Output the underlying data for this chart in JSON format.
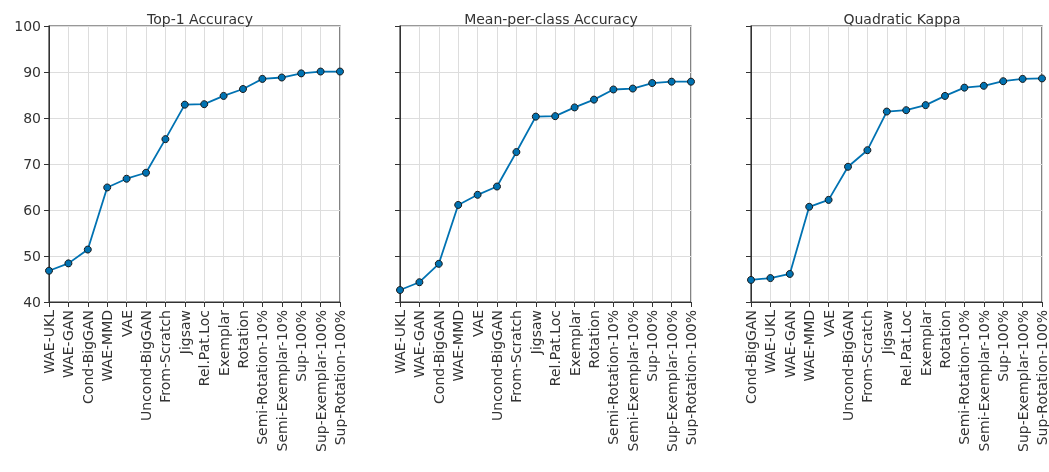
{
  "chart_data": [
    {
      "type": "line",
      "title": "Top-1 Accuracy",
      "categories": [
        "WAE-UKL",
        "WAE-GAN",
        "Cond-BigGAN",
        "WAE-MMD",
        "VAE",
        "Uncond-BigGAN",
        "From-Scratch",
        "Jigsaw",
        "Rel.Pat.Loc",
        "Exemplar",
        "Rotation",
        "Semi-Rotation-10%",
        "Semi-Exemplar-10%",
        "Sup-100%",
        "Sup-Exemplar-100%",
        "Sup-Rotation-100%"
      ],
      "series": [
        {
          "color": "#0072b2",
          "values": [
            46.8,
            48.4,
            51.4,
            64.9,
            66.8,
            68.1,
            75.4,
            82.9,
            83.0,
            84.8,
            86.3,
            88.5,
            88.8,
            89.7,
            90.1,
            90.1
          ]
        }
      ],
      "ylim": [
        40,
        100
      ],
      "yticks": [
        40,
        50,
        60,
        70,
        80,
        90,
        100
      ],
      "grid": true,
      "marker": "circle",
      "line_style": "solid"
    },
    {
      "type": "line",
      "title": "Mean-per-class Accuracy",
      "categories": [
        "WAE-UKL",
        "WAE-GAN",
        "Cond-BigGAN",
        "WAE-MMD",
        "VAE",
        "Uncond-BigGAN",
        "From-Scratch",
        "Jigsaw",
        "Rel.Pat.Loc",
        "Exemplar",
        "Rotation",
        "Semi-Rotation-10%",
        "Semi-Exemplar-10%",
        "Sup-100%",
        "Sup-Exemplar-100%",
        "Sup-Rotation-100%"
      ],
      "series": [
        {
          "color": "#0072b2",
          "values": [
            42.6,
            44.3,
            48.3,
            61.1,
            63.3,
            65.1,
            72.6,
            80.3,
            80.4,
            82.3,
            84.0,
            86.2,
            86.4,
            87.6,
            87.9,
            87.9
          ]
        }
      ],
      "ylim": [
        40,
        100
      ],
      "yticks": [
        40,
        50,
        60,
        70,
        80,
        90,
        100
      ],
      "grid": true,
      "marker": "circle",
      "line_style": "solid",
      "tick_labels": "x"
    },
    {
      "type": "line",
      "title": "Quadratic Kappa",
      "categories": [
        "Cond-BigGAN",
        "WAE-UKL",
        "WAE-GAN",
        "WAE-MMD",
        "VAE",
        "Uncond-BigGAN",
        "From-Scratch",
        "Jigsaw",
        "Rel.Pat.Loc",
        "Exemplar",
        "Rotation",
        "Semi-Rotation-10%",
        "Semi-Exemplar-10%",
        "Sup-100%",
        "Sup-Exemplar-100%",
        "Sup-Rotation-100%"
      ],
      "series": [
        {
          "color": "#0072b2",
          "values": [
            44.8,
            45.2,
            46.1,
            60.7,
            62.2,
            69.4,
            73.0,
            81.4,
            81.7,
            82.8,
            84.8,
            86.6,
            87.0,
            88.0,
            88.5,
            88.6
          ]
        }
      ],
      "ylim": [
        40,
        100
      ],
      "yticks": [
        40,
        50,
        60,
        70,
        80,
        90,
        100
      ],
      "grid": true,
      "marker": "circle",
      "line_style": "solid",
      "tick_labels": "x"
    }
  ]
}
